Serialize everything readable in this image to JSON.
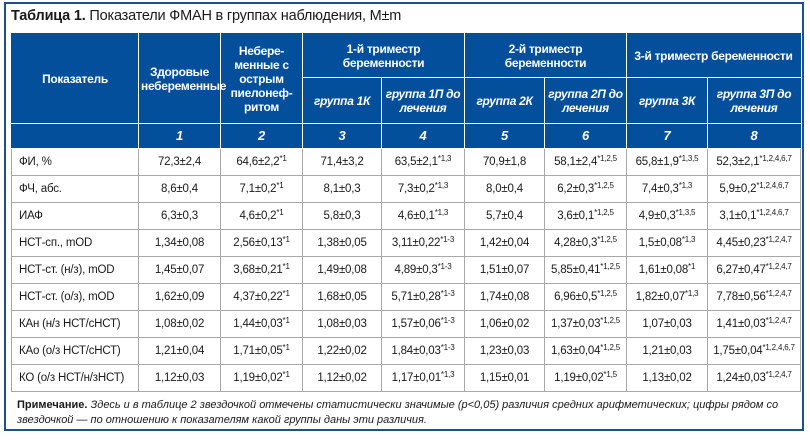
{
  "table": {
    "caption_label": "Таблица 1.",
    "caption_text": " Показатели ФМАН в группах наблюдения, M±m",
    "header": {
      "indicator": "Показатель",
      "col1": "Здоровые небеременные",
      "col2": "Небере-менные с острым пиелонеф-ритом",
      "trimester1": "1-й триместр беременности",
      "trimester2": "2-й триместр беременности",
      "trimester3": "3-й триместр беременности",
      "group_1k": "группа 1К",
      "group_1p": "группа 1П до лечения",
      "group_2k": "группа 2К",
      "group_2p": "группа 2П до лечения",
      "group_3k": "группа 3К",
      "group_3p": "группа 3П до лечения",
      "numbers": [
        "1",
        "2",
        "3",
        "4",
        "5",
        "6",
        "7",
        "8"
      ]
    },
    "rows": [
      {
        "label": "ФИ, %",
        "cells": [
          {
            "v": "72,3±2,4",
            "s": ""
          },
          {
            "v": "64,6±2,2",
            "s": "*1"
          },
          {
            "v": "71,4±3,2",
            "s": ""
          },
          {
            "v": "63,5±2,1",
            "s": "*1,3"
          },
          {
            "v": "70,9±1,8",
            "s": ""
          },
          {
            "v": "58,1±2,4",
            "s": "*1,2,5"
          },
          {
            "v": "65,8±1,9",
            "s": "*1,3,5"
          },
          {
            "v": "52,3±2,1",
            "s": "*1,2,4,6,7"
          }
        ]
      },
      {
        "label": "ФЧ, абс.",
        "cells": [
          {
            "v": "8,6±0,4",
            "s": ""
          },
          {
            "v": "7,1±0,2",
            "s": "*1"
          },
          {
            "v": "8,1±0,3",
            "s": ""
          },
          {
            "v": "7,3±0,2",
            "s": "*1,3"
          },
          {
            "v": "8,0±0,4",
            "s": ""
          },
          {
            "v": "6,2±0,3",
            "s": "*1,2,5"
          },
          {
            "v": "7,4±0,3",
            "s": "*1,3"
          },
          {
            "v": "5,9±0,2",
            "s": "*1,2,4,6,7"
          }
        ]
      },
      {
        "label": "ИАФ",
        "cells": [
          {
            "v": "6,3±0,3",
            "s": ""
          },
          {
            "v": "4,6±0,2",
            "s": "*1"
          },
          {
            "v": "5,8±0,3",
            "s": ""
          },
          {
            "v": "4,6±0,1",
            "s": "*1,3"
          },
          {
            "v": "5,7±0,4",
            "s": ""
          },
          {
            "v": "3,6±0,1",
            "s": "*1,2,5"
          },
          {
            "v": "4,9±0,3",
            "s": "*1,3,5"
          },
          {
            "v": "3,1±0,1",
            "s": "*1,2,4,6,7"
          }
        ]
      },
      {
        "label": "НСТ-сп., mOD",
        "cells": [
          {
            "v": "1,34±0,08",
            "s": ""
          },
          {
            "v": "2,56±0,13",
            "s": "*1"
          },
          {
            "v": "1,38±0,05",
            "s": ""
          },
          {
            "v": "3,11±0,22",
            "s": "*1-3"
          },
          {
            "v": "1,42±0,04",
            "s": ""
          },
          {
            "v": "4,28±0,3",
            "s": "*1,2,5"
          },
          {
            "v": "1,5±0,08",
            "s": "*1,3"
          },
          {
            "v": "4,45±0,23",
            "s": "*1,2,4,7"
          }
        ]
      },
      {
        "label": "НСТ-ст. (н/з), mOD",
        "cells": [
          {
            "v": "1,45±0,07",
            "s": ""
          },
          {
            "v": "3,68±0,21",
            "s": "*1"
          },
          {
            "v": "1,49±0,08",
            "s": ""
          },
          {
            "v": "4,89±0,3",
            "s": "*1-3"
          },
          {
            "v": "1,51±0,07",
            "s": ""
          },
          {
            "v": "5,85±0,41",
            "s": "*1,2,5"
          },
          {
            "v": "1,61±0,08",
            "s": "*1"
          },
          {
            "v": "6,27±0,47",
            "s": "*1,2,4,7"
          }
        ]
      },
      {
        "label": "НСТ-ст. (о/з), mOD",
        "cells": [
          {
            "v": "1,62±0,09",
            "s": ""
          },
          {
            "v": "4,37±0,22",
            "s": "*1"
          },
          {
            "v": "1,68±0,05",
            "s": ""
          },
          {
            "v": "5,71±0,28",
            "s": "*1-3"
          },
          {
            "v": "1,74±0,08",
            "s": ""
          },
          {
            "v": "6,96±0,5",
            "s": "*1,2,5"
          },
          {
            "v": "1,82±0,07",
            "s": "*1,3"
          },
          {
            "v": "7,78±0,56",
            "s": "*1,2,4,7"
          }
        ]
      },
      {
        "label": "КАн (н/з НСТ/сНСТ)",
        "cells": [
          {
            "v": "1,08±0,02",
            "s": ""
          },
          {
            "v": "1,44±0,03",
            "s": "*1"
          },
          {
            "v": "1,08±0,03",
            "s": ""
          },
          {
            "v": "1,57±0,06",
            "s": "*1-3"
          },
          {
            "v": "1,06±0,02",
            "s": ""
          },
          {
            "v": "1,37±0,03",
            "s": "*1,2,5"
          },
          {
            "v": "1,07±0,03",
            "s": ""
          },
          {
            "v": "1,41±0,03",
            "s": "*1,2,4,7"
          }
        ]
      },
      {
        "label": "КАо (о/з НСТ/сНСТ)",
        "cells": [
          {
            "v": "1,21±0,04",
            "s": ""
          },
          {
            "v": "1,71±0,05",
            "s": "*1"
          },
          {
            "v": "1,22±0,02",
            "s": ""
          },
          {
            "v": "1,84±0,03",
            "s": "*1-3"
          },
          {
            "v": "1,23±0,03",
            "s": ""
          },
          {
            "v": "1,63±0,04",
            "s": "*1,2,5"
          },
          {
            "v": "1,21±0,03",
            "s": ""
          },
          {
            "v": "1,75±0,04",
            "s": "*1,2,4,6,7"
          }
        ]
      },
      {
        "label": "КО (о/з НСТ/н/зНСТ)",
        "cells": [
          {
            "v": "1,12±0,03",
            "s": ""
          },
          {
            "v": "1,19±0,02",
            "s": "*1"
          },
          {
            "v": "1,12±0,02",
            "s": ""
          },
          {
            "v": "1,17±0,01",
            "s": "*1,3"
          },
          {
            "v": "1,15±0,01",
            "s": ""
          },
          {
            "v": "1,19±0,02",
            "s": "*1,5"
          },
          {
            "v": "1,13±0,02",
            "s": ""
          },
          {
            "v": "1,24±0,03",
            "s": "*1,2,4,7"
          }
        ]
      }
    ],
    "note_label": "Примечание.",
    "note_text": " Здесь и в таблице 2 звездочкой отмечены статистически значимые (p<0,05) различия средних арифметических; цифры рядом со звездочкой — по отношению к показателям какой группы даны эти различия."
  },
  "colors": {
    "header_bg": "#034f9c",
    "frame_border": "#1d4f91",
    "cell_border": "#a8a8a8"
  }
}
